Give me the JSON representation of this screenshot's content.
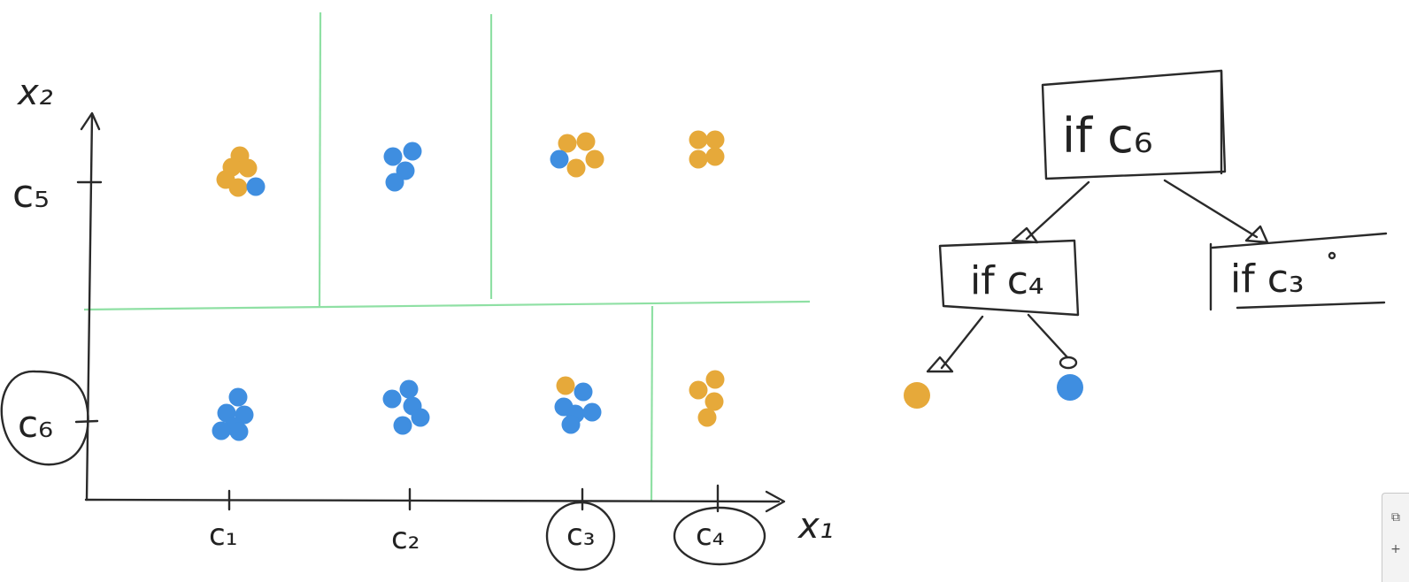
{
  "colors": {
    "orange": "#e6a93a",
    "blue": "#3f8ee0",
    "split_line": "#8fe0a4",
    "ink": "#2a2a2a"
  },
  "plot": {
    "x_axis_label": "x₁",
    "y_axis_label": "x₂",
    "x_ticks": [
      {
        "label": "c₁",
        "circled": false
      },
      {
        "label": "c₂",
        "circled": false
      },
      {
        "label": "c₃",
        "circled": true
      },
      {
        "label": "c₄",
        "circled": true
      }
    ],
    "y_ticks": [
      {
        "label": "c₅",
        "circled": false
      },
      {
        "label": "c₆",
        "circled": true
      }
    ]
  },
  "tree": {
    "root": "if c₆",
    "left": "if c₄",
    "right": "if c₃",
    "leaves": [
      {
        "class": "orange"
      },
      {
        "class": "blue"
      }
    ]
  },
  "corner_widget": {
    "icon": "copy-icon",
    "plus": "+"
  }
}
